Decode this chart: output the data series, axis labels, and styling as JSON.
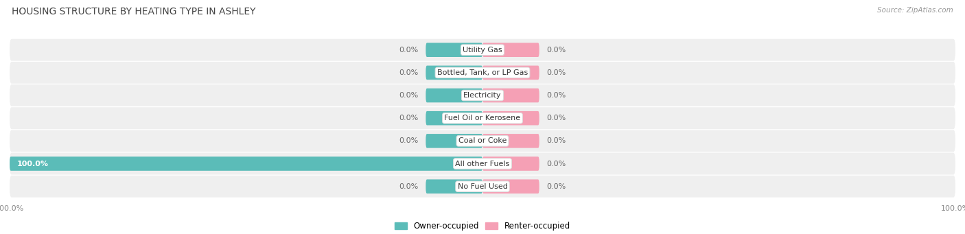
{
  "title": "Housing Structure by Heating Type in Ashley",
  "source": "Source: ZipAtlas.com",
  "categories": [
    "Utility Gas",
    "Bottled, Tank, or LP Gas",
    "Electricity",
    "Fuel Oil or Kerosene",
    "Coal or Coke",
    "All other Fuels",
    "No Fuel Used"
  ],
  "owner_values": [
    0.0,
    0.0,
    0.0,
    0.0,
    0.0,
    100.0,
    0.0
  ],
  "renter_values": [
    0.0,
    0.0,
    0.0,
    0.0,
    0.0,
    0.0,
    0.0
  ],
  "owner_color": "#5bbcb8",
  "renter_color": "#f5a0b5",
  "row_bg_color": "#efefef",
  "row_bg_color_active": "#5bbcb8",
  "title_fontsize": 10,
  "label_fontsize": 8,
  "axis_label_fontsize": 8,
  "stub_size": 12.0,
  "xlim_left": -100,
  "xlim_right": 100
}
